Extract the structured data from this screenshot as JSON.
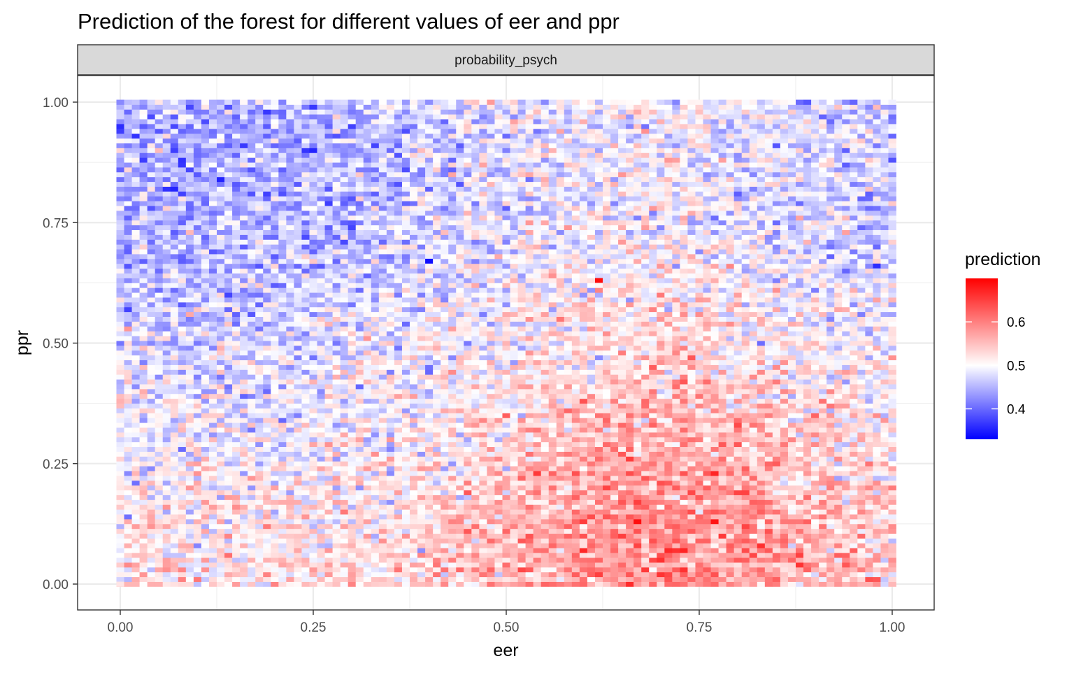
{
  "chart_data": {
    "type": "heatmap",
    "title": "Prediction of the forest for different values of eer and ppr",
    "facet_label": "probability_psych",
    "xlabel": "eer",
    "ylabel": "ppr",
    "xlim": [
      0,
      1
    ],
    "ylim": [
      0,
      1
    ],
    "x_ticks": [
      0,
      0.25,
      0.5,
      0.75,
      1
    ],
    "x_tick_labels": [
      "0.00",
      "0.25",
      "0.50",
      "0.75",
      "1.00"
    ],
    "y_ticks": [
      0,
      0.25,
      0.5,
      0.75,
      1
    ],
    "y_tick_labels": [
      "0.00",
      "0.25",
      "0.50",
      "0.75",
      "1.00"
    ],
    "grid": true,
    "legend": {
      "title": "prediction",
      "placement": "right",
      "range": [
        0.33,
        0.7
      ],
      "midpoint": 0.5,
      "breaks": [
        0.4,
        0.5,
        0.6
      ],
      "break_labels": [
        "0.4",
        "0.5",
        "0.6"
      ],
      "colors": {
        "low": "#0000ff",
        "mid": "#ffffff",
        "high": "#ff0000"
      }
    },
    "grid_resolution": {
      "nx": 101,
      "ny": 101
    },
    "surface_summary": "predictions mostly between 0.40 and 0.60; highest (about 0.55-0.65) for eer 0.50-0.85 with ppr below 0.45; lowest (about 0.40-0.45) for eer below 0.45 with ppr above 0.55; extremes about 0.33 and 0.70",
    "representative_values": [
      {
        "eer": 0.0,
        "ppr": 0.0,
        "prediction": 0.52
      },
      {
        "eer": 0.25,
        "ppr": 0.25,
        "prediction": 0.52
      },
      {
        "eer": 0.0,
        "ppr": 0.75,
        "prediction": 0.47
      },
      {
        "eer": 0.25,
        "ppr": 0.75,
        "prediction": 0.45
      },
      {
        "eer": 0.4,
        "ppr": 0.67,
        "prediction": 0.34
      },
      {
        "eer": 0.5,
        "ppr": 0.75,
        "prediction": 0.5
      },
      {
        "eer": 0.62,
        "ppr": 0.63,
        "prediction": 0.69
      },
      {
        "eer": 0.65,
        "ppr": 0.3,
        "prediction": 0.58
      },
      {
        "eer": 0.7,
        "ppr": 0.1,
        "prediction": 0.6
      },
      {
        "eer": 0.75,
        "ppr": 0.5,
        "prediction": 0.55
      },
      {
        "eer": 0.98,
        "ppr": 0.66,
        "prediction": 0.36
      },
      {
        "eer": 1.0,
        "ppr": 0.25,
        "prediction": 0.5
      },
      {
        "eer": 1.0,
        "ppr": 1.0,
        "prediction": 0.49
      }
    ]
  }
}
